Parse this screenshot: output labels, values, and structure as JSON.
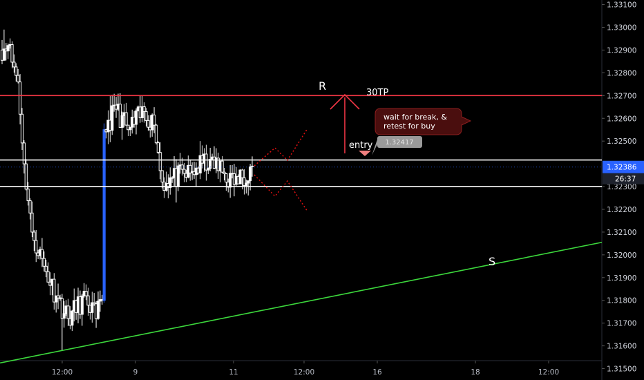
{
  "chart_data": {
    "type": "candlestick",
    "title": "",
    "xlabel": "",
    "ylabel": "",
    "ylim": [
      1.3145,
      1.3312
    ],
    "y_ticks": [
      "1.33100",
      "1.33000",
      "1.32900",
      "1.32800",
      "1.32700",
      "1.32600",
      "1.32500",
      "1.32300",
      "1.32200",
      "1.32100",
      "1.32000",
      "1.31900",
      "1.31800",
      "1.31700",
      "1.31600",
      "1.31500"
    ],
    "x_ticks": [
      "12:00",
      "9",
      "11",
      "12:00",
      "16",
      "18",
      "12:00"
    ],
    "last_price": "1.32386",
    "countdown": "26:37",
    "grid": false,
    "segments": [
      {
        "start": 1.329,
        "end": 1.3292,
        "n": 4,
        "low": 1.3286,
        "high": 1.3299
      },
      {
        "start": 1.3292,
        "end": 1.3276,
        "n": 5
      },
      {
        "start": 1.3276,
        "end": 1.324,
        "n": 3
      },
      {
        "start": 1.324,
        "end": 1.321,
        "n": 4
      },
      {
        "start": 1.321,
        "end": 1.3195,
        "n": 6
      },
      {
        "start": 1.3195,
        "end": 1.3182,
        "n": 6
      },
      {
        "start": 1.3182,
        "end": 1.3172,
        "n": 6,
        "low": 1.3158
      },
      {
        "start": 1.3172,
        "end": 1.3182,
        "n": 9
      },
      {
        "start": 1.3182,
        "end": 1.3172,
        "n": 5
      },
      {
        "start": 1.3172,
        "end": 1.318,
        "n": 3
      },
      {
        "start": 1.318,
        "end": 1.3255,
        "n": 1,
        "color": "#2962ff"
      },
      {
        "start": 1.3255,
        "end": 1.3264,
        "n": 6,
        "high": 1.327
      },
      {
        "start": 1.3264,
        "end": 1.3255,
        "n": 6
      },
      {
        "start": 1.3255,
        "end": 1.3263,
        "n": 8
      },
      {
        "start": 1.3263,
        "end": 1.3257,
        "n": 5
      },
      {
        "start": 1.3257,
        "end": 1.3232,
        "n": 4
      },
      {
        "start": 1.3232,
        "end": 1.3236,
        "n": 14,
        "low": 1.3223
      },
      {
        "start": 1.3236,
        "end": 1.3242,
        "n": 10,
        "high": 1.325
      },
      {
        "start": 1.3242,
        "end": 1.3231,
        "n": 12
      },
      {
        "start": 1.3231,
        "end": 1.3239,
        "n": 9
      }
    ],
    "annotations": {
      "resistance_label": "R",
      "support_label": "S",
      "target_label": "30TP",
      "entry_label": "entry",
      "entry_price": "1.32417",
      "callout_line1": "wait for break, &",
      "callout_line2": "retest for buy"
    },
    "levels": {
      "resistance": 1.327,
      "box_top": 1.32417,
      "box_bottom": 1.323,
      "support_start": 1.31525,
      "support_end": 1.32055
    }
  },
  "colors": {
    "background": "#000000",
    "candle": "#ffffff",
    "spike_candle": "#2962ff",
    "resistance": "#f23645",
    "support": "#3cd83c",
    "price_tag": "#2962ff",
    "callout": "#4a0e0e",
    "projection": "#e01010"
  }
}
